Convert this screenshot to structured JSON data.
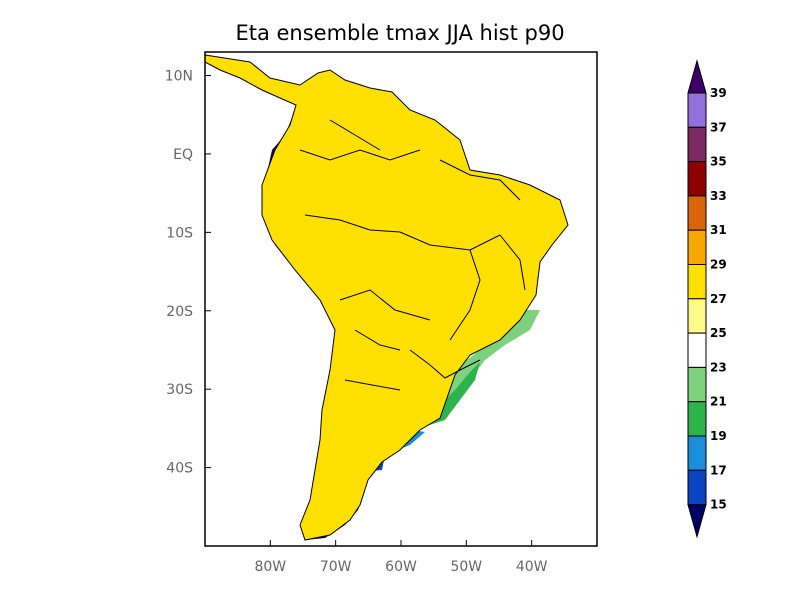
{
  "title": "Eta ensemble tmax JJA hist p90",
  "map": {
    "lon_range": [
      -90,
      -30
    ],
    "lat_range": [
      -50,
      13
    ],
    "lat_ticks": [
      {
        "value": 10,
        "label": "10N"
      },
      {
        "value": 0,
        "label": "EQ"
      },
      {
        "value": -10,
        "label": "10S"
      },
      {
        "value": -20,
        "label": "20S"
      },
      {
        "value": -30,
        "label": "30S"
      },
      {
        "value": -40,
        "label": "40S"
      }
    ],
    "lon_ticks": [
      {
        "value": -80,
        "label": "80W"
      },
      {
        "value": -70,
        "label": "70W"
      },
      {
        "value": -60,
        "label": "60W"
      },
      {
        "value": -50,
        "label": "50W"
      },
      {
        "value": -40,
        "label": "40W"
      }
    ]
  },
  "colorbar": {
    "levels": [
      "15",
      "17",
      "19",
      "21",
      "23",
      "25",
      "27",
      "29",
      "31",
      "33",
      "35",
      "37",
      "39"
    ],
    "colors": {
      "below": "#000066",
      "c15_17": "#0b44c2",
      "c17_19": "#1a8ed8",
      "c19_21": "#2db34c",
      "c21_23": "#7ed27e",
      "c23_25": "#ffffff",
      "c25_27": "#fffa8a",
      "c27_29": "#ffe000",
      "c29_31": "#f7a800",
      "c31_33": "#d9640a",
      "c33_35": "#8c0000",
      "c35_37": "#7a2a60",
      "c37_39": "#9370db",
      "above": "#3d0066"
    }
  }
}
